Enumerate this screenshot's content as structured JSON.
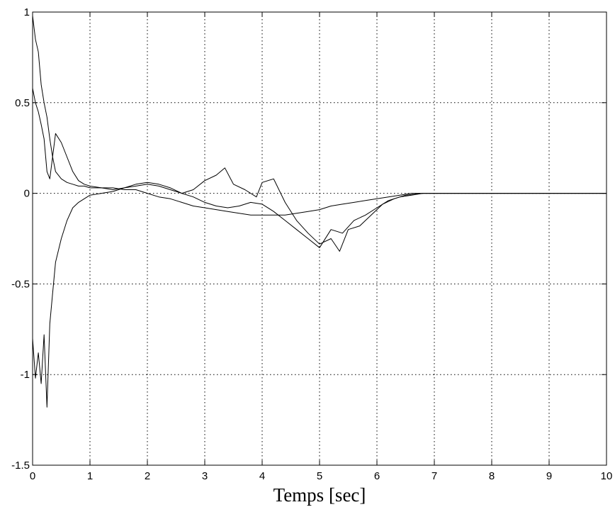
{
  "chart_data": {
    "type": "line",
    "title": "",
    "xlabel": "Temps [sec]",
    "ylabel": "",
    "xlim": [
      0,
      10
    ],
    "ylim": [
      -1.5,
      1
    ],
    "grid": true,
    "x_ticks": [
      0,
      1,
      2,
      3,
      4,
      5,
      6,
      7,
      8,
      9,
      10
    ],
    "x_tick_labels": [
      "0",
      "1",
      "2",
      "3",
      "4",
      "5",
      "6",
      "7",
      "8",
      "9",
      "10"
    ],
    "y_ticks": [
      1,
      0.5,
      0,
      -0.5,
      -1,
      -1.5
    ],
    "y_tick_labels": [
      "1",
      "0.5",
      "0",
      "-0.5",
      "-1",
      "-1.5"
    ],
    "series": [
      {
        "color": "#000000",
        "x": [
          0,
          0.05,
          0.1,
          0.15,
          0.2,
          0.25,
          0.3,
          0.35,
          0.4,
          0.5,
          0.6,
          0.7,
          0.8,
          0.9,
          1.0,
          1.2,
          1.4,
          1.6,
          1.8,
          2.0,
          2.2,
          2.4,
          2.6,
          2.8,
          3.0,
          3.2,
          3.4,
          3.6,
          3.8,
          4.0,
          4.2,
          4.4,
          4.6,
          4.8,
          5.0,
          5.2,
          5.4,
          5.6,
          5.8,
          6.0,
          6.2,
          6.4,
          6.6,
          6.8,
          7.0,
          8.0,
          9.0,
          10.0
        ],
        "y": [
          0.98,
          0.85,
          0.78,
          0.6,
          0.5,
          0.42,
          0.3,
          0.2,
          0.12,
          0.08,
          0.06,
          0.05,
          0.04,
          0.04,
          0.03,
          0.03,
          0.03,
          0.02,
          0.02,
          0.0,
          -0.02,
          -0.03,
          -0.05,
          -0.07,
          -0.08,
          -0.09,
          -0.1,
          -0.11,
          -0.12,
          -0.12,
          -0.12,
          -0.12,
          -0.11,
          -0.1,
          -0.09,
          -0.07,
          -0.06,
          -0.05,
          -0.04,
          -0.03,
          -0.02,
          -0.01,
          0.0,
          0.0,
          0.0,
          0.0,
          0.0,
          0.0
        ]
      },
      {
        "color": "#000000",
        "x": [
          0,
          0.05,
          0.1,
          0.15,
          0.2,
          0.25,
          0.3,
          0.4,
          0.5,
          0.6,
          0.7,
          0.8,
          0.9,
          1.0,
          1.2,
          1.4,
          1.6,
          1.8,
          2.0,
          2.2,
          2.4,
          2.6,
          2.8,
          3.0,
          3.2,
          3.35,
          3.5,
          3.7,
          3.9,
          4.0,
          4.2,
          4.4,
          4.6,
          4.8,
          5.0,
          5.2,
          5.35,
          5.5,
          5.7,
          5.9,
          6.1,
          6.3,
          6.5,
          6.8,
          7.0,
          8.0,
          9.0,
          10.0
        ],
        "y": [
          0.58,
          0.5,
          0.45,
          0.38,
          0.3,
          0.12,
          0.08,
          0.33,
          0.28,
          0.2,
          0.12,
          0.07,
          0.05,
          0.04,
          0.03,
          0.02,
          0.03,
          0.04,
          0.05,
          0.04,
          0.02,
          0.0,
          0.02,
          0.07,
          0.1,
          0.14,
          0.05,
          0.02,
          -0.02,
          0.06,
          0.08,
          -0.05,
          -0.15,
          -0.22,
          -0.28,
          -0.25,
          -0.32,
          -0.2,
          -0.18,
          -0.12,
          -0.06,
          -0.03,
          -0.01,
          0.0,
          0.0,
          0.0,
          0.0,
          0.0
        ]
      },
      {
        "color": "#000000",
        "x": [
          0,
          0.05,
          0.1,
          0.15,
          0.2,
          0.25,
          0.3,
          0.35,
          0.4,
          0.5,
          0.6,
          0.7,
          0.8,
          0.9,
          1.0,
          1.2,
          1.4,
          1.6,
          1.8,
          2.0,
          2.2,
          2.4,
          2.6,
          2.8,
          3.0,
          3.2,
          3.4,
          3.6,
          3.8,
          4.0,
          4.2,
          4.4,
          4.6,
          4.8,
          5.0,
          5.2,
          5.4,
          5.6,
          5.8,
          6.0,
          6.2,
          6.4,
          6.6,
          6.8,
          7.0,
          8.0,
          9.0,
          10.0
        ],
        "y": [
          -0.8,
          -1.02,
          -0.88,
          -1.05,
          -0.78,
          -1.18,
          -0.72,
          -0.55,
          -0.38,
          -0.25,
          -0.15,
          -0.08,
          -0.05,
          -0.03,
          -0.01,
          0.0,
          0.01,
          0.03,
          0.05,
          0.06,
          0.05,
          0.03,
          0.0,
          -0.02,
          -0.05,
          -0.07,
          -0.08,
          -0.07,
          -0.05,
          -0.06,
          -0.1,
          -0.15,
          -0.2,
          -0.25,
          -0.3,
          -0.2,
          -0.22,
          -0.15,
          -0.12,
          -0.08,
          -0.04,
          -0.02,
          -0.01,
          0.0,
          0.0,
          0.0,
          0.0,
          0.0
        ]
      }
    ]
  }
}
